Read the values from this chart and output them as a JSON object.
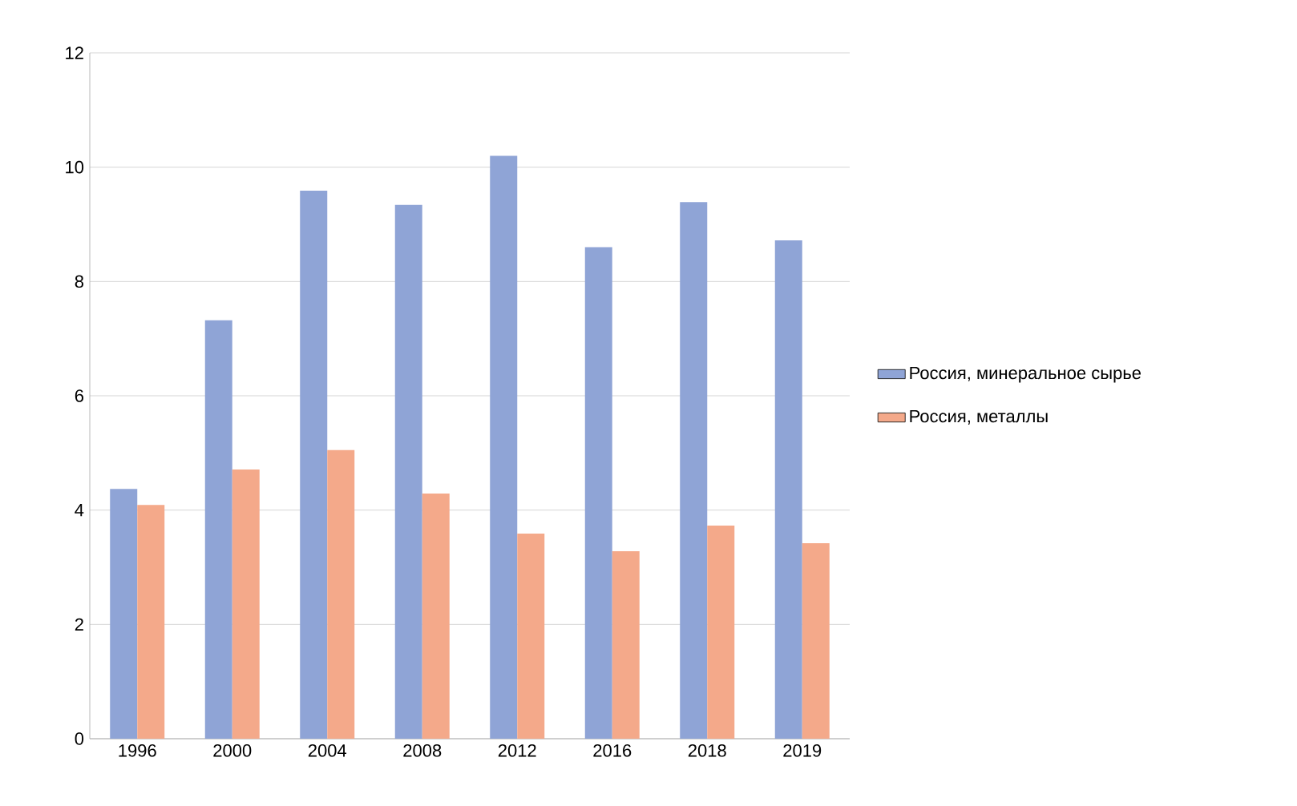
{
  "chart_data": {
    "type": "bar",
    "categories": [
      "1996",
      "2000",
      "2004",
      "2008",
      "2012",
      "2016",
      "2018",
      "2019"
    ],
    "series": [
      {
        "name": "Россия, минеральное сырье",
        "color": "#8fa4d6",
        "values": [
          4.37,
          7.32,
          9.59,
          9.34,
          10.2,
          8.6,
          9.39,
          8.72
        ]
      },
      {
        "name": "Россия, металлы",
        "color": "#f4a98a",
        "values": [
          4.09,
          4.71,
          5.05,
          4.29,
          3.59,
          3.28,
          3.73,
          3.42
        ]
      }
    ],
    "ylim": [
      0,
      12
    ],
    "yticks": [
      0,
      2,
      4,
      6,
      8,
      10,
      12
    ],
    "grid": "y",
    "legend": "right"
  }
}
